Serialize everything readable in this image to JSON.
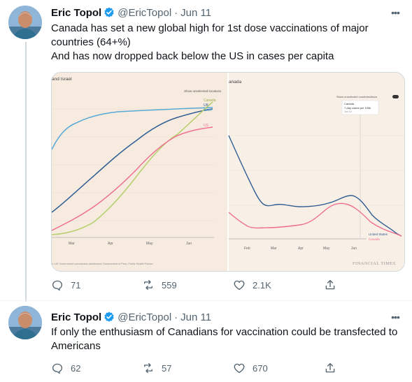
{
  "tweets": [
    {
      "name": "Eric Topol",
      "handle": "@EricTopol",
      "date": "Jun 11",
      "text_lines": [
        "Canada has set a new global high for 1st dose vaccinations of major",
        "countries (64+%)",
        "And has now dropped back below the US in cases per capita"
      ],
      "counts": {
        "replies": "71",
        "retweets": "559",
        "likes": "2.1K"
      },
      "media": {
        "left": {
          "title_fragment": "and Israel",
          "toggle_label": "Show unselected locations",
          "series_labels": [
            "Canada",
            "UK",
            "Israel",
            "US"
          ],
          "x_ticks": [
            "Mar",
            "Apr",
            "May",
            "Jun"
          ],
          "source": "s: UK Government coronavirus dashboard; Government of Peru; Public Health France"
        },
        "right": {
          "title_fragment": "anada",
          "toggle_label": "Show unselected countries/blocs",
          "tooltip": {
            "country": "Canada",
            "metric": "7-day cases per 100k",
            "date": "Jun 10"
          },
          "series_labels": [
            "United States",
            "Canada"
          ],
          "x_ticks": [
            "Feb",
            "Mar",
            "Apr",
            "May",
            "Jun"
          ],
          "brand": "FINANCIAL TIMES"
        }
      }
    },
    {
      "name": "Eric Topol",
      "handle": "@EricTopol",
      "date": "Jun 11",
      "text_lines": [
        "If only the enthusiasm of Canadians for vaccination could be transfected to",
        "Americans"
      ],
      "counts": {
        "replies": "62",
        "retweets": "57",
        "likes": "670"
      }
    }
  ],
  "colors": {
    "text_primary": "#0f1419",
    "text_secondary": "#536471",
    "verified_blue": "#1d9bf0",
    "canada_green": "#b5cf6b",
    "uk_blue": "#2f5e94",
    "israel_blue": "#57a9d6",
    "us_pink": "#ef6f8e",
    "chart_bg": "#f6ece3"
  },
  "icons": [
    "reply-icon",
    "retweet-icon",
    "like-icon",
    "share-icon",
    "more-icon",
    "verified-badge-icon"
  ]
}
